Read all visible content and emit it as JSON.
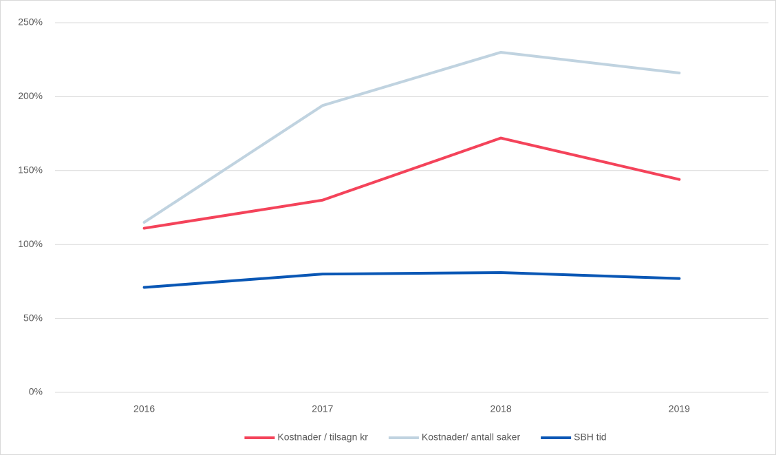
{
  "chart_data": {
    "type": "line",
    "categories": [
      "2016",
      "2017",
      "2018",
      "2019"
    ],
    "series": [
      {
        "name": "Kostnader / tilsagn kr",
        "color": "#f4435a",
        "values": [
          111,
          130,
          172,
          144
        ]
      },
      {
        "name": "Kostnader/ antall saker",
        "color": "#c0d3e0",
        "values": [
          115,
          194,
          230,
          216
        ]
      },
      {
        "name": "SBH tid",
        "color": "#0a57b5",
        "values": [
          71,
          80,
          81,
          77
        ]
      }
    ],
    "ylim": [
      0,
      250
    ],
    "yticks": [
      {
        "value": 0,
        "label": "0%"
      },
      {
        "value": 50,
        "label": "50%"
      },
      {
        "value": 100,
        "label": "100%"
      },
      {
        "value": 150,
        "label": "150%"
      },
      {
        "value": 200,
        "label": "200%"
      },
      {
        "value": 250,
        "label": "250%"
      }
    ],
    "grid": true,
    "legend": "bottom"
  }
}
